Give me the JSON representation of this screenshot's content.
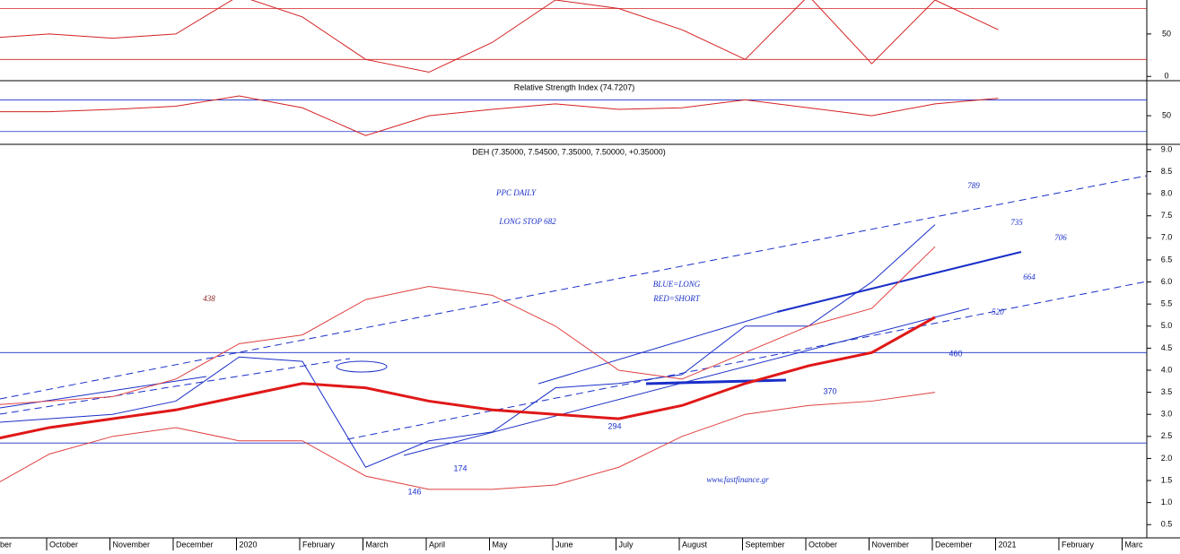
{
  "chart_data": [
    {
      "type": "line",
      "ylim": [
        -5,
        90
      ],
      "yticks": [
        0,
        50
      ],
      "hlines": [
        20,
        80
      ],
      "series": [
        {
          "name": null,
          "color": "#d42020",
          "values": [
            45,
            50,
            45,
            50,
            95,
            70,
            20,
            5,
            40,
            90,
            80,
            55,
            20,
            95,
            15,
            90,
            55,
            null,
            null,
            null
          ]
        }
      ]
    },
    {
      "type": "line",
      "title": "Relative Strength Index (74.7207)",
      "ylim": [
        15,
        92
      ],
      "yticks": [
        50
      ],
      "hlines": [
        30,
        70
      ],
      "series": [
        {
          "name": null,
          "color": "#d42020",
          "values": [
            55,
            55,
            58,
            62,
            75,
            60,
            25,
            50,
            58,
            65,
            58,
            60,
            70,
            60,
            50,
            65,
            72,
            null,
            null,
            null
          ]
        }
      ]
    },
    {
      "type": "line",
      "title": "DEH (7.35000, 7.54500, 7.35000, 7.50000, +0.35000)",
      "categories": [
        "tember",
        "October",
        "November",
        "December",
        "2020",
        "February",
        "March",
        "April",
        "May",
        "June",
        "July",
        "August",
        "September",
        "October",
        "November",
        "December",
        "2021",
        "February",
        "Marc"
      ],
      "ylim": [
        0.2,
        9.1
      ],
      "yticks": [
        {
          "value": 0.5,
          "label": "0.5"
        },
        {
          "value": 1,
          "label": "1.0"
        },
        {
          "value": 1.5,
          "label": "1.5"
        },
        {
          "value": 2,
          "label": "2.0"
        },
        {
          "value": 2.5,
          "label": "2.5"
        },
        {
          "value": 3,
          "label": "3.0"
        },
        {
          "value": 3.5,
          "label": "3.5"
        },
        {
          "value": 4,
          "label": "4.0"
        },
        {
          "value": 4.5,
          "label": "4.5"
        },
        {
          "value": 5,
          "label": "5.0"
        },
        {
          "value": 5.5,
          "label": "5.5"
        },
        {
          "value": 6,
          "label": "6.0"
        },
        {
          "value": 6.5,
          "label": "6.5"
        },
        {
          "value": 7,
          "label": "7.0"
        },
        {
          "value": 7.5,
          "label": "7.5"
        },
        {
          "value": 8,
          "label": "8.0"
        },
        {
          "value": 8.5,
          "label": "8.5"
        },
        {
          "value": 9,
          "label": "9.0"
        }
      ],
      "hlines": [
        4.4,
        2.35
      ],
      "series": [
        {
          "name": null,
          "color": "#1a2fc8",
          "values": [
            2.8,
            2.9,
            3.0,
            3.3,
            4.3,
            4.2,
            1.8,
            2.4,
            2.6,
            3.6,
            3.7,
            3.9,
            5.0,
            5.0,
            6.0,
            7.3,
            null,
            null,
            null
          ]
        },
        {
          "name": null,
          "color": "#e01818",
          "values": [
            2.4,
            2.7,
            2.9,
            3.1,
            3.4,
            3.7,
            3.6,
            3.3,
            3.1,
            3.0,
            2.9,
            3.2,
            3.7,
            4.1,
            4.4,
            5.2,
            null,
            null,
            null
          ]
        },
        {
          "name": null,
          "color": "#e04040",
          "values": [
            3.2,
            3.3,
            3.4,
            3.8,
            4.6,
            4.8,
            5.6,
            5.9,
            5.7,
            5.0,
            4.0,
            3.8,
            4.4,
            5.0,
            5.4,
            6.8,
            null,
            null,
            null
          ]
        },
        {
          "name": null,
          "color": "#e04040",
          "values": [
            1.3,
            2.1,
            2.5,
            2.7,
            2.4,
            2.4,
            1.6,
            1.3,
            1.3,
            1.4,
            1.8,
            2.5,
            3.0,
            3.2,
            3.3,
            3.5,
            null,
            null,
            null
          ]
        }
      ],
      "annotations": [
        "PPC DAILY",
        "LONG STOP 682",
        "789",
        "735",
        "706",
        "664",
        "520",
        "460",
        "370",
        "294",
        "174",
        "146",
        "438",
        "BLUE=LONG",
        "RED=SHORT",
        "www.fastfinance.gr"
      ]
    }
  ]
}
